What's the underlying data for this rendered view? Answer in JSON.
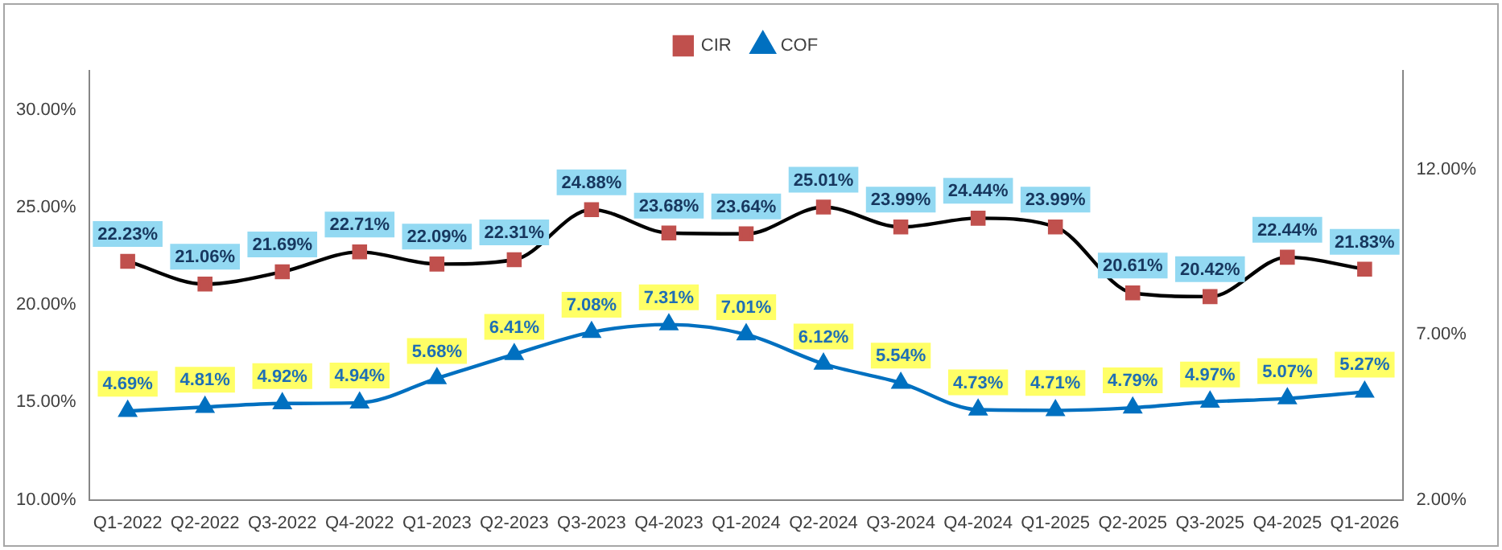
{
  "chart_data": {
    "type": "line",
    "categories": [
      "Q1-2022",
      "Q2-2022",
      "Q3-2022",
      "Q4-2022",
      "Q1-2023",
      "Q2-2023",
      "Q3-2023",
      "Q4-2023",
      "Q1-2024",
      "Q2-2024",
      "Q3-2024",
      "Q4-2024",
      "Q1-2025",
      "Q2-2025",
      "Q3-2025",
      "Q4-2025",
      "Q1-2026"
    ],
    "series": [
      {
        "name": "CIR",
        "color": "#000000",
        "marker": "square",
        "colors": [
          "#c0504d",
          "#c0504d",
          "#c0504d",
          "#c0504d",
          "#c0504d",
          "#c0504d",
          "#c0504d",
          "#c0504d",
          "#c0504d",
          "#c0504d",
          "#c0504d",
          "#c0504d",
          "#c0504d",
          "#c0504d",
          "#c0504d",
          "#c0504d",
          "#c0504d"
        ],
        "values": [
          22.23,
          21.06,
          21.69,
          22.71,
          22.09,
          22.31,
          24.88,
          23.68,
          23.64,
          25.01,
          23.99,
          24.44,
          23.99,
          20.61,
          20.42,
          22.44,
          21.83
        ],
        "value_labels": [
          "22.23%",
          "21.06%",
          "21.69%",
          "22.71%",
          "22.09%",
          "22.31%",
          "24.88%",
          "23.68%",
          "23.64%",
          "25.01%",
          "23.99%",
          "24.44%",
          "23.99%",
          "20.61%",
          "20.42%",
          "22.44%",
          "21.83%"
        ]
      },
      {
        "name": "COF",
        "color": "#0070c0",
        "marker": "triangle",
        "axis": "y2",
        "values": [
          4.69,
          4.81,
          4.92,
          4.94,
          5.68,
          6.41,
          7.08,
          7.31,
          7.01,
          6.12,
          5.54,
          4.73,
          4.71,
          4.79,
          4.97,
          5.07,
          5.27
        ],
        "value_labels": [
          "4.69%",
          "4.81%",
          "4.92%",
          "4.94%",
          "5.68%",
          "6.41%",
          "7.08%",
          "7.31%",
          "7.01%",
          "6.12%",
          "5.54%",
          "4.73%",
          "4.71%",
          "4.79%",
          "4.97%",
          "5.07%",
          "5.27%"
        ]
      }
    ],
    "ylim": [
      10,
      32
    ],
    "yticks": [
      {
        "value": 10,
        "label": "10.00%"
      },
      {
        "value": 15,
        "label": "15.00%"
      },
      {
        "value": 20,
        "label": "20.00%"
      },
      {
        "value": 25,
        "label": "25.00%"
      },
      {
        "value": 30,
        "label": "30.00%"
      }
    ],
    "y2lim": [
      2,
      15
    ],
    "y2ticks": [
      {
        "value": 2,
        "label": "2.00%"
      },
      {
        "value": 7,
        "label": "7.00%"
      },
      {
        "value": 12,
        "label": "12.00%"
      }
    ],
    "grid": false,
    "legend": "top",
    "line_style": "solid"
  }
}
